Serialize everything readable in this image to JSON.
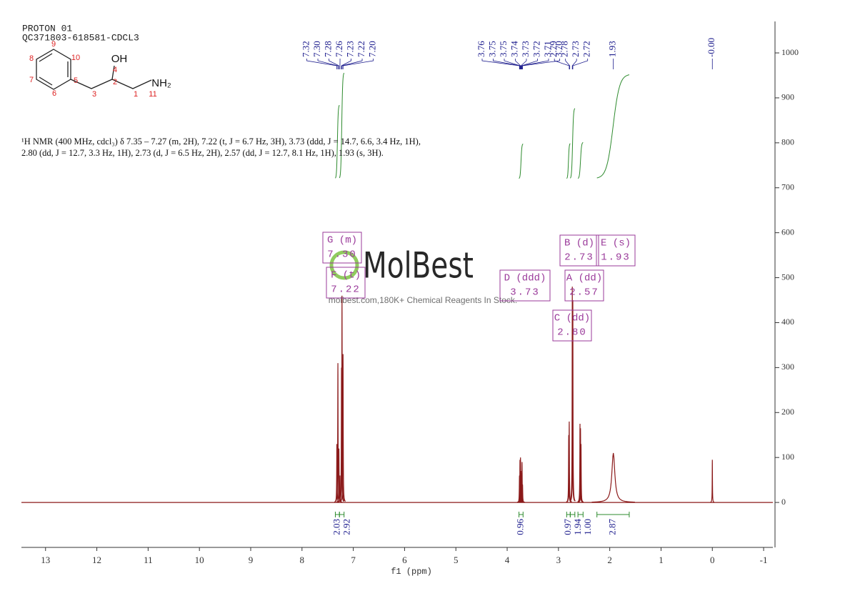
{
  "header": {
    "lines": [
      "PROTON 01",
      "QC371803-618581-CDCL3"
    ]
  },
  "structure": {
    "atom_numbers": [
      9,
      10,
      8,
      7,
      6,
      5,
      3,
      4,
      2,
      1,
      11
    ],
    "groups": [
      "OH",
      "NH₂"
    ]
  },
  "description": "¹H NMR (400 MHz, cdcl₃) δ 7.35 – 7.27 (m, 2H), 7.22 (t, J = 6.7 Hz, 3H), 3.73 (ddd, J = 14.7, 6.6, 3.4 Hz, 1H), 2.80 (dd, J = 12.7, 3.3 Hz, 1H), 2.73 (d, J = 6.5 Hz, 2H), 2.57 (dd, J = 12.7, 8.1 Hz, 1H), 1.93 (s, 3H).",
  "watermark": {
    "logo": "MolBest",
    "text": "molbest.com,180K+ Chemical Reagents In Stock."
  },
  "chart_data": {
    "type": "spectrum",
    "xlabel": "f1 (ppm)",
    "xlim": [
      13.47,
      -1.18
    ],
    "xticks": [
      13,
      12,
      11,
      10,
      9,
      8,
      7,
      6,
      5,
      4,
      3,
      2,
      1,
      0,
      -1
    ],
    "ylim": [
      -100,
      1070
    ],
    "yticks": [
      0,
      100,
      200,
      300,
      400,
      500,
      600,
      700,
      800,
      900,
      1000
    ],
    "color": "#8b1a1a",
    "peaks": {
      "ppm": [
        7.32,
        7.3,
        7.28,
        7.26,
        7.23,
        7.22,
        7.2,
        3.76,
        3.75,
        3.74,
        3.73,
        3.72,
        3.71,
        3.7,
        2.8,
        2.79,
        2.73,
        2.72,
        2.58,
        2.57,
        2.56,
        1.93,
        0.0
      ],
      "height": [
        130,
        310,
        120,
        60,
        300,
        460,
        330,
        60,
        95,
        100,
        70,
        65,
        90,
        40,
        150,
        180,
        480,
        450,
        175,
        165,
        130,
        110,
        95
      ],
      "widths": [
        0.004,
        0.004,
        0.004,
        0.004,
        0.004,
        0.004,
        0.004,
        0.004,
        0.004,
        0.004,
        0.004,
        0.004,
        0.004,
        0.004,
        0.004,
        0.004,
        0.004,
        0.004,
        0.004,
        0.004,
        0.004,
        0.035,
        0.003
      ]
    },
    "peak_picks": {
      "values": [
        7.32,
        7.3,
        7.28,
        7.26,
        7.23,
        7.22,
        7.2,
        3.76,
        3.75,
        3.75,
        3.74,
        3.73,
        3.72,
        3.71,
        3.7,
        2.79,
        2.78,
        2.73,
        2.72,
        1.93,
        0
      ],
      "value_labels": [
        "7.32",
        "7.30",
        "7.28",
        "7.26",
        "7.23",
        "7.22",
        "7.20",
        "3.76",
        "3.75",
        "3.75",
        "3.74",
        "3.73",
        "3.72",
        "3.71",
        "3.70",
        "2.79",
        "2.78",
        "2.73",
        "2.72",
        "1.93",
        "-0.00"
      ],
      "color": "#1a1a8c"
    },
    "multiplets": [
      {
        "label": "G (m)",
        "shift": "7.30"
      },
      {
        "label": "F (t)",
        "shift": "7.22"
      },
      {
        "label": "D (ddd)",
        "shift": "3.73"
      },
      {
        "label": "B (d)",
        "shift": "2.73"
      },
      {
        "label": "E (s)",
        "shift": "1.93"
      },
      {
        "label": "A (dd)",
        "shift": "2.57"
      },
      {
        "label": "C (dd)",
        "shift": "2.80"
      }
    ],
    "multiplet_color": "#9a3a9a",
    "integrals": {
      "ranges": [
        [
          7.35,
          7.27
        ],
        [
          7.27,
          7.18
        ],
        [
          3.77,
          3.69
        ],
        [
          2.84,
          2.77
        ],
        [
          2.77,
          2.68
        ],
        [
          2.62,
          2.52
        ],
        [
          2.25,
          1.62
        ]
      ],
      "values": [
        2.03,
        2.92,
        0.96,
        0.97,
        1.94,
        1.0,
        2.87
      ],
      "value_labels": [
        "2.03",
        "2.92",
        "0.96",
        "0.97",
        "1.94",
        "1.00",
        "2.87"
      ],
      "color": "#2e8b2e"
    }
  }
}
